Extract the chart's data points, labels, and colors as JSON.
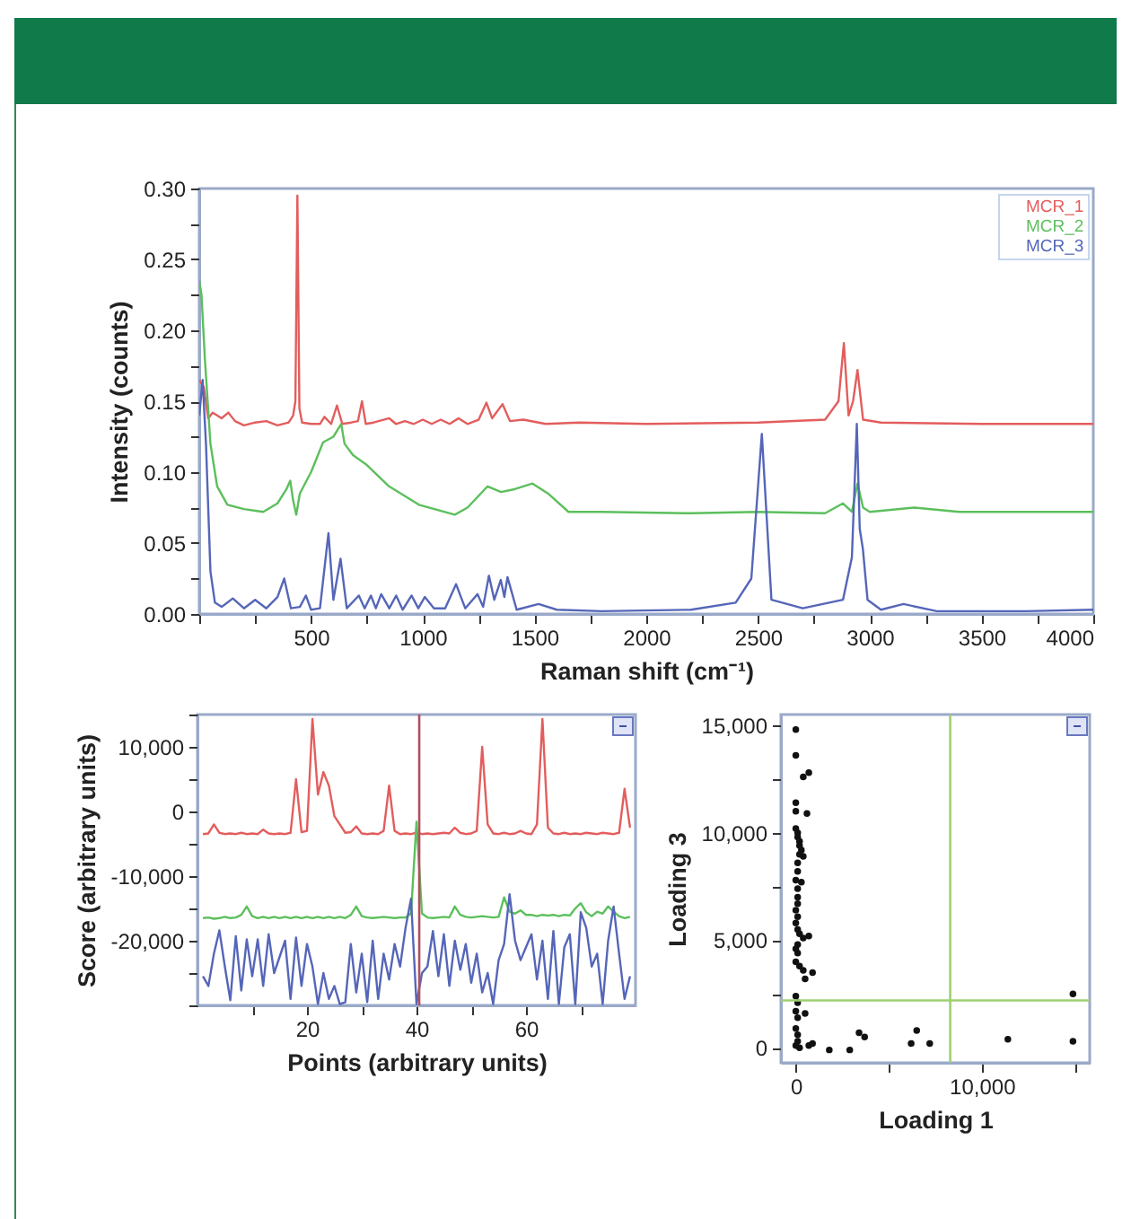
{
  "chart_data": [
    {
      "type": "line",
      "xlabel": "Raman shift (cm⁻¹)",
      "ylabel": "Intensity (counts)",
      "xlim": [
        0,
        4000
      ],
      "ylim": [
        0,
        0.3
      ],
      "xticks": [
        {
          "value": 0,
          "label": null
        },
        {
          "value": 250,
          "label": null
        },
        500,
        {
          "value": 750,
          "label": null
        },
        1000,
        {
          "value": 1250,
          "label": null
        },
        1500,
        {
          "value": 1750,
          "label": null
        },
        2000,
        {
          "value": 2250,
          "label": null
        },
        2500,
        {
          "value": 2750,
          "label": null
        },
        3000,
        {
          "value": 3250,
          "label": null
        },
        3500,
        {
          "value": 3750,
          "label": null
        },
        4000
      ],
      "yticks": [
        {
          "value": 0,
          "label": "0.00"
        },
        {
          "value": 0.025,
          "label": null
        },
        0.05,
        {
          "value": 0.075,
          "label": null
        },
        {
          "value": 0.1,
          "label": "0.10"
        },
        {
          "value": 0.125,
          "label": null
        },
        0.15,
        {
          "value": 0.175,
          "label": null
        },
        {
          "value": 0.2,
          "label": "0.20"
        },
        {
          "value": 0.225,
          "label": null
        },
        0.25,
        {
          "value": 0.275,
          "label": null
        },
        {
          "value": 0.3,
          "label": "0.30"
        }
      ],
      "legend": "top right",
      "series": [
        {
          "name": "MCR_1",
          "color": "#e35d5d",
          "x": [
            0,
            20,
            40,
            60,
            80,
            100,
            130,
            160,
            200,
            250,
            300,
            350,
            400,
            420,
            430,
            439,
            448,
            460,
            500,
            540,
            560,
            590,
            616,
            640,
            680,
            710,
            728,
            745,
            780,
            850,
            880,
            920,
            960,
            1000,
            1040,
            1080,
            1120,
            1160,
            1200,
            1250,
            1285,
            1310,
            1357,
            1390,
            1450,
            1550,
            1700,
            2000,
            2500,
            2800,
            2860,
            2884,
            2905,
            2925,
            2945,
            2970,
            3050,
            3500,
            4000
          ],
          "values": [
            0.165,
            0.16,
            0.138,
            0.142,
            0.14,
            0.138,
            0.142,
            0.136,
            0.133,
            0.135,
            0.136,
            0.133,
            0.135,
            0.14,
            0.15,
            0.295,
            0.145,
            0.135,
            0.134,
            0.134,
            0.139,
            0.134,
            0.147,
            0.134,
            0.135,
            0.136,
            0.15,
            0.134,
            0.135,
            0.138,
            0.134,
            0.136,
            0.134,
            0.137,
            0.134,
            0.137,
            0.134,
            0.138,
            0.134,
            0.137,
            0.149,
            0.138,
            0.148,
            0.136,
            0.137,
            0.134,
            0.135,
            0.134,
            0.135,
            0.137,
            0.15,
            0.191,
            0.14,
            0.15,
            0.172,
            0.137,
            0.135,
            0.134,
            0.134
          ]
        },
        {
          "name": "MCR_2",
          "color": "#5cbf5c",
          "x": [
            0,
            10,
            25,
            50,
            80,
            126,
            200,
            286,
            350,
            390,
            407,
            420,
            434,
            450,
            500,
            554,
            600,
            635,
            650,
            688,
            750,
            849,
            983,
            1143,
            1200,
            1290,
            1350,
            1411,
            1491,
            1560,
            1652,
            1800,
            2200,
            2500,
            2800,
            2880,
            2920,
            2945,
            2970,
            3000,
            3200,
            3400,
            4000
          ],
          "values": [
            0.235,
            0.225,
            0.18,
            0.12,
            0.09,
            0.077,
            0.074,
            0.072,
            0.078,
            0.088,
            0.094,
            0.08,
            0.07,
            0.085,
            0.1,
            0.121,
            0.125,
            0.134,
            0.12,
            0.112,
            0.105,
            0.09,
            0.077,
            0.07,
            0.075,
            0.09,
            0.086,
            0.088,
            0.092,
            0.085,
            0.072,
            0.072,
            0.071,
            0.072,
            0.071,
            0.078,
            0.072,
            0.092,
            0.075,
            0.072,
            0.075,
            0.072,
            0.072
          ]
        },
        {
          "name": "MCR_3",
          "color": "#5566b8",
          "x": [
            0,
            15,
            30,
            50,
            70,
            100,
            150,
            200,
            250,
            300,
            350,
            380,
            410,
            450,
            477,
            500,
            540,
            578,
            600,
            632,
            660,
            714,
            740,
            768,
            790,
            814,
            850,
            881,
            910,
            950,
            980,
            1009,
            1050,
            1100,
            1149,
            1190,
            1245,
            1270,
            1296,
            1320,
            1349,
            1365,
            1379,
            1420,
            1518,
            1600,
            1800,
            2200,
            2400,
            2470,
            2517,
            2560,
            2700,
            2880,
            2920,
            2942,
            2955,
            2969,
            2990,
            3050,
            3151,
            3300,
            3700,
            4000
          ],
          "values": [
            0.14,
            0.165,
            0.12,
            0.03,
            0.008,
            0.005,
            0.011,
            0.004,
            0.01,
            0.004,
            0.012,
            0.025,
            0.004,
            0.005,
            0.013,
            0.003,
            0.004,
            0.057,
            0.01,
            0.039,
            0.004,
            0.013,
            0.004,
            0.013,
            0.004,
            0.014,
            0.004,
            0.013,
            0.003,
            0.013,
            0.004,
            0.012,
            0.004,
            0.004,
            0.021,
            0.004,
            0.014,
            0.005,
            0.027,
            0.01,
            0.024,
            0.012,
            0.026,
            0.003,
            0.007,
            0.003,
            0.002,
            0.003,
            0.008,
            0.025,
            0.127,
            0.01,
            0.004,
            0.01,
            0.04,
            0.134,
            0.06,
            0.046,
            0.01,
            0.003,
            0.007,
            0.002,
            0.002,
            0.003
          ]
        }
      ]
    },
    {
      "type": "line",
      "xlabel": "Points (arbitrary units)",
      "ylabel": "Score (arbitrary units)",
      "xlim": [
        0,
        80
      ],
      "ylim": [
        -30000,
        15000
      ],
      "xticks": [
        {
          "value": 10,
          "label": null
        },
        20,
        {
          "value": 30,
          "label": null
        },
        40,
        {
          "value": 50,
          "label": null
        },
        60,
        {
          "value": 70,
          "label": null
        }
      ],
      "yticks": [
        {
          "value": -30000,
          "label": null
        },
        {
          "value": -25000,
          "label": null
        },
        {
          "value": -20000,
          "label": "-20,000"
        },
        {
          "value": -15000,
          "label": null
        },
        {
          "value": -10000,
          "label": "-10,000"
        },
        {
          "value": -5000,
          "label": null
        },
        0,
        {
          "value": 5000,
          "label": null
        },
        {
          "value": 10000,
          "label": "10,000"
        },
        {
          "value": 15000,
          "label": null
        }
      ],
      "x": [
        1,
        2,
        3,
        4,
        5,
        6,
        7,
        8,
        9,
        10,
        11,
        12,
        13,
        14,
        15,
        16,
        17,
        18,
        19,
        20,
        21,
        22,
        23,
        24,
        25,
        26,
        27,
        28,
        29,
        30,
        31,
        32,
        33,
        34,
        35,
        36,
        37,
        38,
        39,
        40,
        41,
        42,
        43,
        44,
        45,
        46,
        47,
        48,
        49,
        50,
        51,
        52,
        53,
        54,
        55,
        56,
        57,
        58,
        59,
        60,
        61,
        62,
        63,
        64,
        65,
        66,
        67,
        68,
        69,
        70,
        71,
        72,
        73,
        74,
        75,
        76,
        77,
        78,
        79
      ],
      "series": [
        {
          "color": "#e35d5d",
          "values": [
            -3500,
            -3400,
            -2000,
            -3300,
            -3500,
            -3400,
            -3500,
            -3300,
            -3500,
            -3400,
            -3500,
            -2800,
            -3400,
            -3500,
            -3400,
            -3500,
            -3300,
            5000,
            -3200,
            -3000,
            14300,
            2600,
            6100,
            4000,
            -700,
            -2000,
            -3300,
            -3200,
            -2300,
            -3400,
            -3500,
            -3400,
            -3500,
            -3000,
            4000,
            -3000,
            -3500,
            -3400,
            -3500,
            -3300,
            -3500,
            -3400,
            -3500,
            -3400,
            -3300,
            -3400,
            -2500,
            -3300,
            -3500,
            -3400,
            -3000,
            10000,
            -2000,
            -3400,
            -3500,
            -3300,
            -3500,
            -3400,
            -3000,
            -3400,
            -3500,
            -2000,
            14300,
            -2500,
            -3400,
            -3500,
            -3300,
            -3500,
            -3400,
            -3500,
            -3300,
            -3400,
            -3500,
            -3300,
            -3400,
            -3500,
            -3300,
            3500,
            -2500
          ]
        },
        {
          "color": "#5cbf5c",
          "values": [
            -16500,
            -16400,
            -16600,
            -16500,
            -16300,
            -16500,
            -16400,
            -16000,
            -14700,
            -16200,
            -16500,
            -16300,
            -16500,
            -16300,
            -16500,
            -16300,
            -16500,
            -16300,
            -16500,
            -16300,
            -16500,
            -16300,
            -16500,
            -16300,
            -16500,
            -16300,
            -16500,
            -16000,
            -14700,
            -16200,
            -16400,
            -16500,
            -16400,
            -16300,
            -16400,
            -16500,
            -16400,
            -16400,
            -15800,
            -1600,
            -15800,
            -16400,
            -16500,
            -16400,
            -16300,
            -16400,
            -14700,
            -16000,
            -16300,
            -16400,
            -16300,
            -16200,
            -16300,
            -16400,
            -16300,
            -13300,
            -15500,
            -15800,
            -15300,
            -16000,
            -16000,
            -16200,
            -16000,
            -16100,
            -16000,
            -16200,
            -16000,
            -16100,
            -15000,
            -14200,
            -15600,
            -16200,
            -15500,
            -15800,
            -14700,
            -15500,
            -16200,
            -16500,
            -16300
          ]
        },
        {
          "color": "#5566b8",
          "values": [
            -25500,
            -27000,
            -22000,
            -18400,
            -24000,
            -29200,
            -19300,
            -27700,
            -19800,
            -25500,
            -19800,
            -27000,
            -19000,
            -25000,
            -22500,
            -20000,
            -29000,
            -19500,
            -27000,
            -20500,
            -24000,
            -29800,
            -25000,
            -29000,
            -27000,
            -29800,
            -29500,
            -20500,
            -28000,
            -22000,
            -29500,
            -20000,
            -29000,
            -22000,
            -26000,
            -20500,
            -24000,
            -18000,
            -13500,
            -29800,
            -25000,
            -24000,
            -18500,
            -25500,
            -19000,
            -27000,
            -20000,
            -24500,
            -20500,
            -26500,
            -22000,
            -28000,
            -25000,
            -29800,
            -23000,
            -20500,
            -12800,
            -20000,
            -23000,
            -21000,
            -19000,
            -26000,
            -20000,
            -29000,
            -18500,
            -29800,
            -21000,
            -19000,
            -29800,
            -15600,
            -18000,
            -24000,
            -22000,
            -29800,
            -20000,
            -14700,
            -22000,
            -29000,
            -25500
          ]
        }
      ],
      "ref_lines": [
        {
          "axis": "x",
          "value": 40.5,
          "color": "#b05060"
        }
      ]
    },
    {
      "type": "scatter",
      "xlabel": "Loading 1",
      "ylabel": "Loading 3",
      "xlim": [
        -800,
        15800
      ],
      "ylim": [
        -700,
        15500
      ],
      "xticks": [
        0,
        {
          "value": 5000,
          "label": null
        },
        {
          "value": 10000,
          "label": "10,000"
        },
        {
          "value": 15000,
          "label": null
        }
      ],
      "yticks": [
        0,
        {
          "value": 2500,
          "label": null
        },
        {
          "value": 5000,
          "label": "5,000"
        },
        {
          "value": 7500,
          "label": null
        },
        {
          "value": 10000,
          "label": "10,000"
        },
        {
          "value": 12500,
          "label": null
        },
        {
          "value": 15000,
          "label": "15,000"
        }
      ],
      "marker": "circle",
      "series": [
        {
          "color": "#111111",
          "x": [
            0,
            0,
            400,
            700,
            0,
            0,
            600,
            0,
            100,
            100,
            200,
            200,
            300,
            200,
            400,
            100,
            100,
            0,
            300,
            100,
            100,
            100,
            0,
            100,
            0,
            100,
            200,
            400,
            700,
            100,
            0,
            100,
            0,
            200,
            400,
            900,
            500,
            0,
            100,
            0,
            500,
            100,
            0,
            100,
            100,
            0,
            200,
            700,
            900,
            1800,
            2900,
            3400,
            3700,
            6200,
            6500,
            7200,
            11400,
            14900,
            14900
          ],
          "values": [
            14800,
            13600,
            12600,
            12800,
            11400,
            11000,
            10900,
            10200,
            10000,
            9800,
            9600,
            9400,
            9200,
            9000,
            8900,
            8600,
            8200,
            7800,
            7700,
            7400,
            7000,
            6700,
            6400,
            6100,
            5800,
            5500,
            5300,
            5100,
            5200,
            4800,
            4600,
            4400,
            4000,
            3800,
            3600,
            3500,
            3200,
            2400,
            2100,
            1700,
            1600,
            1400,
            900,
            600,
            300,
            100,
            0,
            100,
            200,
            -100,
            -100,
            700,
            500,
            200,
            800,
            200,
            400,
            300,
            2500
          ]
        }
      ],
      "ref_lines": [
        {
          "axis": "x",
          "value": 8300,
          "color": "#9fd070"
        },
        {
          "axis": "y",
          "value": 2200,
          "color": "#9fd070"
        }
      ]
    }
  ]
}
